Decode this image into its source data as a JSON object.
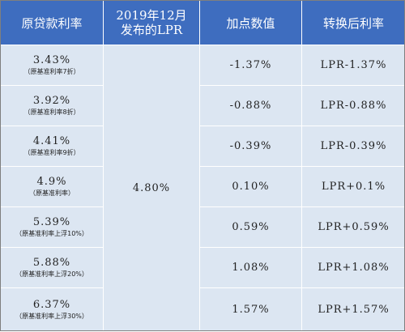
{
  "table": {
    "headers": [
      "原贷款利率",
      "2019年12月",
      "发布的LPR",
      "加点数值",
      "转换后利率"
    ],
    "lpr_value": "4.80%",
    "rows": [
      {
        "rate": "3.43%",
        "note": "（原基准利率7折）",
        "point": "-1.37%",
        "result": "LPR-1.37%"
      },
      {
        "rate": "3.92%",
        "note": "（原基准利率8折）",
        "point": "-0.88%",
        "result": "LPR-0.88%"
      },
      {
        "rate": "4.41%",
        "note": "（原基准利率9折）",
        "point": "-0.39%",
        "result": "LPR-0.39%"
      },
      {
        "rate": "4.9%",
        "note": "（原基准利率）",
        "point": "0.10%",
        "result": "LPR+0.1%"
      },
      {
        "rate": "5.39%",
        "note": "（原基准利率上浮10%）",
        "point": "0.59%",
        "result": "LPR+0.59%"
      },
      {
        "rate": "5.88%",
        "note": "（原基准利率上浮20%）",
        "point": "1.08%",
        "result": "LPR+1.08%"
      },
      {
        "rate": "6.37%",
        "note": "（原基准利率上浮30%）",
        "point": "1.57%",
        "result": "LPR+1.57%"
      }
    ]
  },
  "colors": {
    "header_bg": "#3e6dbf",
    "cell_bg": "#dce6f2",
    "border": "#ffffff"
  }
}
